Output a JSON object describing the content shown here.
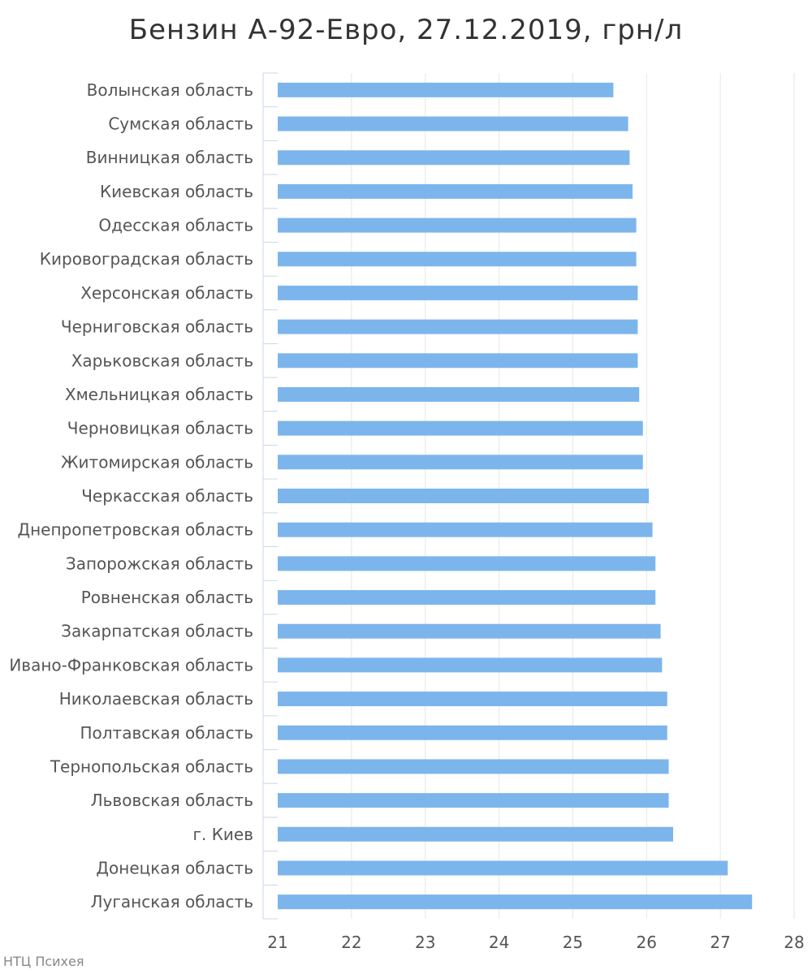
{
  "credit": "НТЦ Психея",
  "chart_data": {
    "type": "bar",
    "orientation": "horizontal",
    "title": "Бензин А-92-Евро, 27.12.2019, грн/л",
    "xlabel": "",
    "ylabel": "",
    "xlim": [
      21,
      28
    ],
    "xticks": [
      21,
      22,
      23,
      24,
      25,
      26,
      27,
      28
    ],
    "grid": true,
    "bar_color": "#7cb5ec",
    "categories": [
      "Волынская область",
      "Сумская область",
      "Винницкая область",
      "Киевская область",
      "Одесская область",
      "Кировоградская область",
      "Херсонская область",
      "Черниговская область",
      "Харьковская область",
      "Хмельницкая область",
      "Черновицкая область",
      "Житомирская область",
      "Черкасская область",
      "Днепропетровская область",
      "Запорожская область",
      "Ровненская область",
      "Закарпатская область",
      "Ивано-Франковская область",
      "Николаевская область",
      "Полтавская область",
      "Тернопольская область",
      "Львовская область",
      "г. Киев",
      "Донецкая область",
      "Луганская область"
    ],
    "values": [
      25.55,
      25.75,
      25.77,
      25.81,
      25.86,
      25.86,
      25.88,
      25.88,
      25.88,
      25.9,
      25.95,
      25.95,
      26.03,
      26.08,
      26.12,
      26.12,
      26.19,
      26.21,
      26.28,
      26.28,
      26.3,
      26.3,
      26.36,
      27.1,
      27.43
    ]
  }
}
